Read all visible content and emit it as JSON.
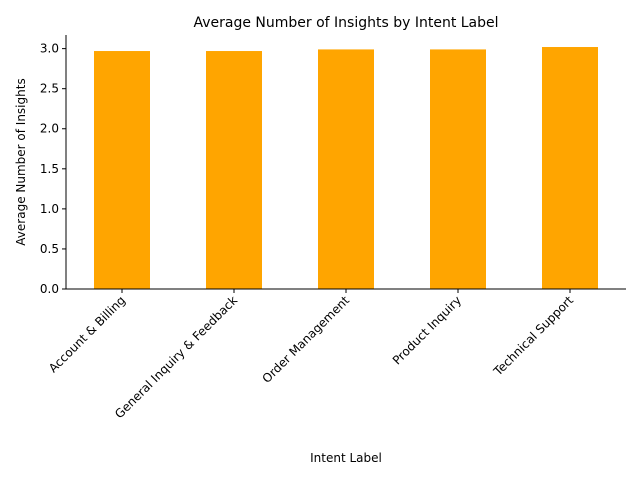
{
  "colors": {
    "bar": "#FFA500",
    "axis": "#000000",
    "background": "#FFFFFF"
  },
  "chart_data": {
    "type": "bar",
    "title": "Average Number of Insights by Intent Label",
    "xlabel": "Intent Label",
    "ylabel": "Average Number of Insights",
    "categories": [
      "Account & Billing",
      "General Inquiry & Feedback",
      "Order Management",
      "Product Inquiry",
      "Technical Support"
    ],
    "values": [
      2.97,
      2.97,
      2.99,
      2.99,
      3.02
    ],
    "ylim": [
      0,
      3.17
    ],
    "yticks": [
      "0.0",
      "0.5",
      "1.0",
      "1.5",
      "2.0",
      "2.5",
      "3.0"
    ],
    "grid": false,
    "legend": false
  }
}
